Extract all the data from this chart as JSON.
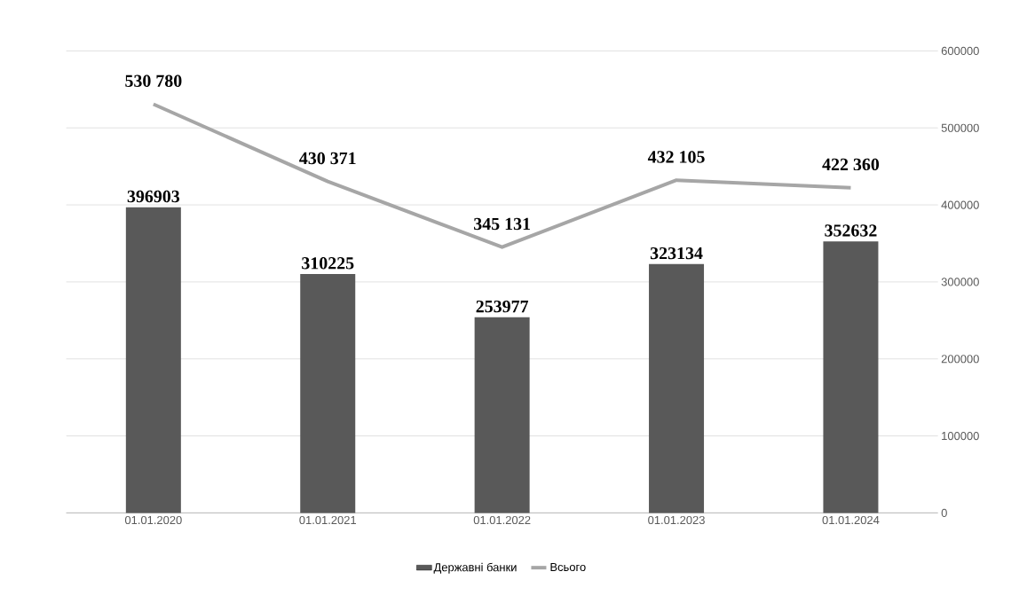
{
  "chart_data": {
    "type": "bar",
    "categories": [
      "01.01.2020",
      "01.01.2021",
      "01.01.2022",
      "01.01.2023",
      "01.01.2024"
    ],
    "series": [
      {
        "name": "Державні банки",
        "color": "#595959",
        "values": [
          396903,
          310225,
          253977,
          323134,
          352632
        ],
        "value_labels": [
          "396903",
          "310225",
          "253977",
          "323134",
          "352632"
        ]
      },
      {
        "name": "Всього",
        "type": "line",
        "color": "#a6a6a6",
        "values": [
          530780,
          430371,
          345131,
          432105,
          422360
        ],
        "value_labels": [
          "530 780",
          "430 371",
          "345 131",
          "432 105",
          "422 360"
        ]
      }
    ],
    "ylim": [
      0,
      600000
    ],
    "yticks": [
      0,
      100000,
      200000,
      300000,
      400000,
      500000,
      600000
    ],
    "grid": "y",
    "legend": "bottom",
    "marker": "none"
  }
}
